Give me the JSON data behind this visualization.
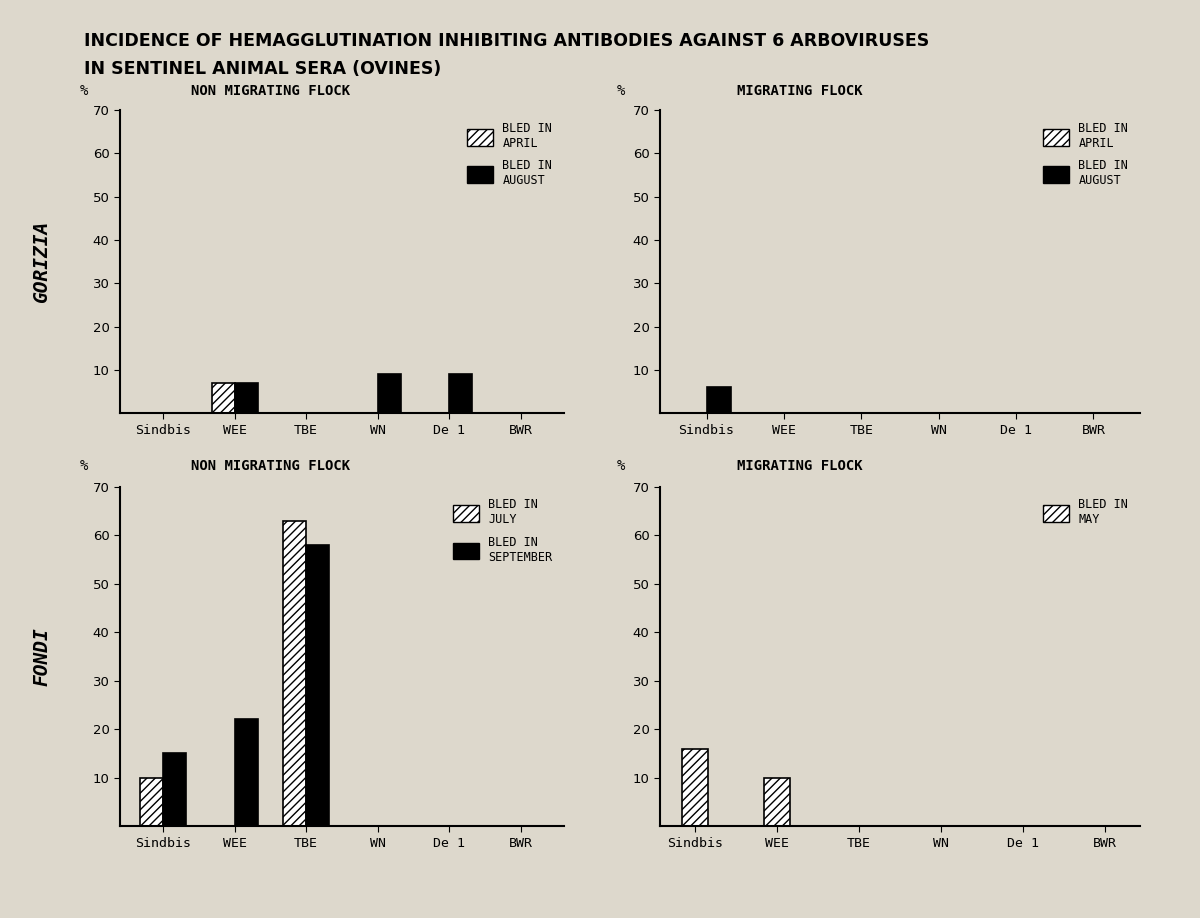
{
  "title_line1": "INCIDENCE OF HEMAGGLUTINATION INHIBITING ANTIBODIES AGAINST 6 ARBOVIRUSES",
  "title_line2": "IN SENTINEL ANIMAL SERA (OVINES)",
  "background_color": "#ddd8cc",
  "categories": [
    "Sindbis",
    "WEE",
    "TBE",
    "WN",
    "De 1",
    "BWR"
  ],
  "gorizia_non_migrating": {
    "title": "NON MIGRATING FLOCK",
    "legend1": "BLED IN\nAPRIL",
    "legend2": "BLED IN\nAUGUST",
    "april": [
      0,
      7,
      0,
      0,
      0,
      0
    ],
    "august": [
      0,
      7,
      0,
      9,
      9,
      0
    ]
  },
  "gorizia_migrating": {
    "title": "MIGRATING FLOCK",
    "legend1": "BLED IN\nAPRIL",
    "legend2": "BLED IN\nAUGUST",
    "april": [
      0,
      0,
      0,
      0,
      0,
      0
    ],
    "august": [
      6,
      0,
      0,
      0,
      0,
      0
    ]
  },
  "fondi_non_migrating": {
    "title": "NON MIGRATING FLOCK",
    "legend1": "BLED IN\nJULY",
    "legend2": "BLED IN\nSEPTEMBER",
    "july": [
      10,
      0,
      63,
      0,
      0,
      0
    ],
    "september": [
      15,
      22,
      58,
      0,
      0,
      0
    ]
  },
  "fondi_migrating": {
    "title": "MIGRATING FLOCK",
    "legend1": "BLED IN\nMAY",
    "may": [
      16,
      10,
      0,
      0,
      0,
      0
    ]
  },
  "row_labels": [
    "GORIZIA",
    "FONDI"
  ],
  "ylim": [
    0,
    70
  ],
  "yticks": [
    10,
    20,
    30,
    40,
    50,
    60,
    70
  ]
}
